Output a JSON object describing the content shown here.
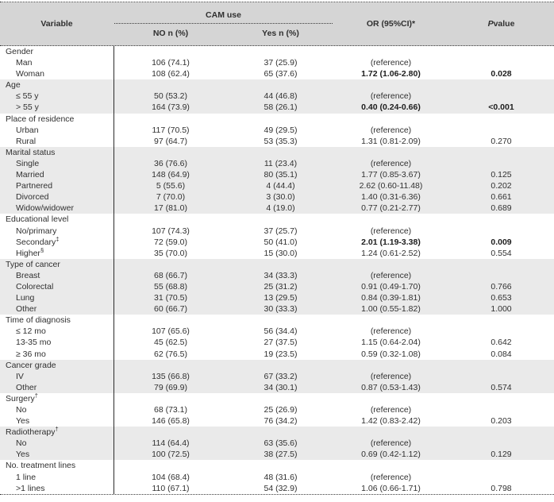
{
  "colors": {
    "header_bg": "#d5d5d5",
    "shaded_bg": "#eaeaea",
    "text": "#303030",
    "border": "#3a3a3a"
  },
  "table": {
    "header": {
      "variable": "Variable",
      "cam_use": "CAM use",
      "no": "NO n (%)",
      "yes": "Yes n (%)",
      "or": "OR (95%CI)*",
      "p_italic": "P",
      "p_rest": " value"
    },
    "groups": [
      {
        "label": "Gender",
        "sup": "",
        "shaded": false,
        "rows": [
          {
            "label": "Man",
            "sup": "",
            "no": "106 (74.1)",
            "yes": "37 (25.9)",
            "or": "(reference)",
            "p": "",
            "bold": false
          },
          {
            "label": "Woman",
            "sup": "",
            "no": "108 (62.4)",
            "yes": "65 (37.6)",
            "or": "1.72 (1.06-2.80)",
            "p": "0.028",
            "bold": true
          }
        ]
      },
      {
        "label": "Age",
        "sup": "",
        "shaded": true,
        "rows": [
          {
            "label": "≤ 55 y",
            "sup": "",
            "no": "50 (53.2)",
            "yes": "44 (46.8)",
            "or": "(reference)",
            "p": "",
            "bold": false
          },
          {
            "label": "> 55 y",
            "sup": "",
            "no": "164 (73.9)",
            "yes": "58 (26.1)",
            "or": "0.40 (0.24-0.66)",
            "p": "<0.001",
            "bold": true
          }
        ]
      },
      {
        "label": "Place of residence",
        "sup": "",
        "shaded": false,
        "rows": [
          {
            "label": "Urban",
            "sup": "",
            "no": "117 (70.5)",
            "yes": "49 (29.5)",
            "or": "(reference)",
            "p": "",
            "bold": false
          },
          {
            "label": "Rural",
            "sup": "",
            "no": "97 (64.7)",
            "yes": "53 (35.3)",
            "or": "1.31 (0.81-2.09)",
            "p": "0.270",
            "bold": false
          }
        ]
      },
      {
        "label": "Marital status",
        "sup": "",
        "shaded": true,
        "rows": [
          {
            "label": "Single",
            "sup": "",
            "no": "36 (76.6)",
            "yes": "11 (23.4)",
            "or": "(reference)",
            "p": "",
            "bold": false
          },
          {
            "label": "Married",
            "sup": "",
            "no": "148 (64.9)",
            "yes": "80 (35.1)",
            "or": "1.77 (0.85-3.67)",
            "p": "0.125",
            "bold": false
          },
          {
            "label": "Partnered",
            "sup": "",
            "no": "5 (55.6)",
            "yes": "4 (44.4)",
            "or": "2.62 (0.60-11.48)",
            "p": "0.202",
            "bold": false
          },
          {
            "label": "Divorced",
            "sup": "",
            "no": "7 (70.0)",
            "yes": "3 (30.0)",
            "or": "1.40 (0.31-6.36)",
            "p": "0.661",
            "bold": false
          },
          {
            "label": "Widow/widower",
            "sup": "",
            "no": "17 (81.0)",
            "yes": "4 (19.0)",
            "or": "0.77 (0.21-2.77)",
            "p": "0.689",
            "bold": false
          }
        ]
      },
      {
        "label": "Educational level",
        "sup": "",
        "shaded": false,
        "rows": [
          {
            "label": "No/primary",
            "sup": "",
            "no": "107 (74.3)",
            "yes": "37 (25.7)",
            "or": "(reference)",
            "p": "",
            "bold": false
          },
          {
            "label": "Secondary",
            "sup": "‡",
            "no": "72 (59.0)",
            "yes": "50 (41.0)",
            "or": "2.01 (1.19-3.38)",
            "p": "0.009",
            "bold": true
          },
          {
            "label": "Higher",
            "sup": "§",
            "no": "35 (70.0)",
            "yes": "15 (30.0)",
            "or": "1.24 (0.61-2.52)",
            "p": "0.554",
            "bold": false
          }
        ]
      },
      {
        "label": "Type of cancer",
        "sup": "",
        "shaded": true,
        "rows": [
          {
            "label": "Breast",
            "sup": "",
            "no": "68 (66.7)",
            "yes": "34 (33.3)",
            "or": "(reference)",
            "p": "",
            "bold": false
          },
          {
            "label": "Colorectal",
            "sup": "",
            "no": "55 (68.8)",
            "yes": "25 (31.2)",
            "or": "0.91 (0.49-1.70)",
            "p": "0.766",
            "bold": false
          },
          {
            "label": "Lung",
            "sup": "",
            "no": "31 (70.5)",
            "yes": "13 (29.5)",
            "or": "0.84 (0.39-1.81)",
            "p": "0.653",
            "bold": false
          },
          {
            "label": "Other",
            "sup": "",
            "no": "60 (66.7)",
            "yes": "30 (33.3)",
            "or": "1.00 (0.55-1.82)",
            "p": "1.000",
            "bold": false
          }
        ]
      },
      {
        "label": "Time of diagnosis",
        "sup": "",
        "shaded": false,
        "rows": [
          {
            "label": "≤ 12 mo",
            "sup": "",
            "no": "107 (65.6)",
            "yes": "56 (34.4)",
            "or": "(reference)",
            "p": "",
            "bold": false
          },
          {
            "label": "13-35 mo",
            "sup": "",
            "no": "45 (62.5)",
            "yes": "27 (37.5)",
            "or": "1.15 (0.64-2.04)",
            "p": "0.642",
            "bold": false
          },
          {
            "label": "≥ 36 mo",
            "sup": "",
            "no": "62 (76.5)",
            "yes": "19 (23.5)",
            "or": "0.59 (0.32-1.08)",
            "p": "0.084",
            "bold": false
          }
        ]
      },
      {
        "label": "Cancer grade",
        "sup": "",
        "shaded": true,
        "rows": [
          {
            "label": "IV",
            "sup": "",
            "no": "135 (66.8)",
            "yes": "67 (33.2)",
            "or": "(reference)",
            "p": "",
            "bold": false
          },
          {
            "label": "Other",
            "sup": "",
            "no": "79 (69.9)",
            "yes": "34 (30.1)",
            "or": "0.87 (0.53-1.43)",
            "p": "0.574",
            "bold": false
          }
        ]
      },
      {
        "label": "Surgery",
        "sup": "†",
        "shaded": false,
        "rows": [
          {
            "label": "No",
            "sup": "",
            "no": "68 (73.1)",
            "yes": "25 (26.9)",
            "or": "(reference)",
            "p": "",
            "bold": false
          },
          {
            "label": "Yes",
            "sup": "",
            "no": "146 (65.8)",
            "yes": "76 (34.2)",
            "or": "1.42 (0.83-2.42)",
            "p": "0.203",
            "bold": false
          }
        ]
      },
      {
        "label": "Radiotherapy",
        "sup": "†",
        "shaded": true,
        "rows": [
          {
            "label": "No",
            "sup": "",
            "no": "114 (64.4)",
            "yes": "63 (35.6)",
            "or": "(reference)",
            "p": "",
            "bold": false
          },
          {
            "label": "Yes",
            "sup": "",
            "no": "100 (72.5)",
            "yes": "38 (27.5)",
            "or": "0.69 (0.42-1.12)",
            "p": "0.129",
            "bold": false
          }
        ]
      },
      {
        "label": "No. treatment lines",
        "sup": "",
        "shaded": false,
        "rows": [
          {
            "label": "1 line",
            "sup": "",
            "no": "104 (68.4)",
            "yes": "48 (31.6)",
            "or": "(reference)",
            "p": "",
            "bold": false
          },
          {
            "label": ">1 lines",
            "sup": "",
            "no": "110 (67.1)",
            "yes": "54 (32.9)",
            "or": "1.06 (0.66-1.71)",
            "p": "0.798",
            "bold": false
          }
        ]
      }
    ]
  }
}
